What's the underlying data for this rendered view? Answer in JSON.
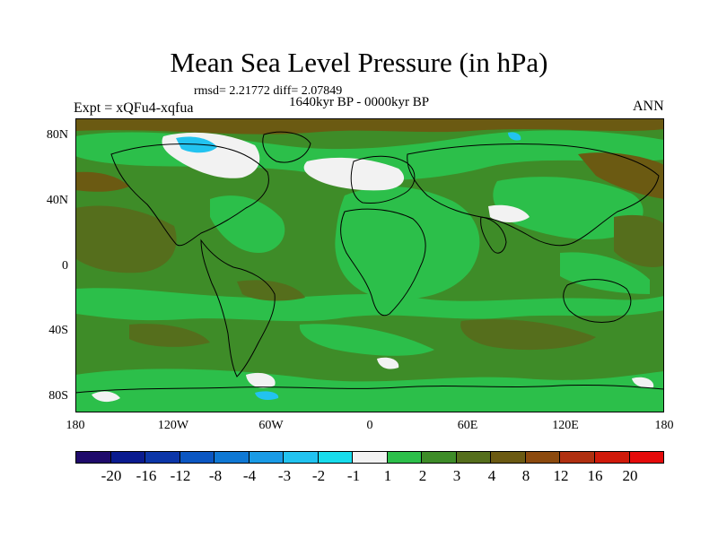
{
  "title": "Mean Sea Level Pressure (in hPa)",
  "stats": "rmsd= 2.21772  diff= 2.07849",
  "period": "1640kyr BP - 0000kyr BP",
  "experiment": "Expt = xQFu4-xqfua",
  "season": "ANN",
  "y_ticks": [
    "80N",
    "40N",
    "0",
    "40S",
    "80S"
  ],
  "x_ticks": [
    "180",
    "120W",
    "60W",
    "0",
    "60E",
    "120E",
    "180"
  ],
  "colorbar": {
    "labels": [
      "-20",
      "-16",
      "-12",
      "-8",
      "-4",
      "-3",
      "-2",
      "-1",
      "1",
      "2",
      "3",
      "4",
      "8",
      "12",
      "16",
      "20"
    ],
    "colors": [
      "#1f0a6b",
      "#0a1b8f",
      "#0c36a8",
      "#0b57c2",
      "#0f78d4",
      "#1a9be6",
      "#22c3f0",
      "#18dcec",
      "#f2f2f2",
      "#2cbf4a",
      "#3e8c28",
      "#556e1c",
      "#6b5a12",
      "#8c4a0e",
      "#b03010",
      "#d01a0a",
      "#e50a0a"
    ]
  },
  "map_colors": {
    "ocean_base": "#3e8c28",
    "light_green": "#2cbf4a",
    "olive": "#556e1c",
    "brown": "#6b5a12",
    "white": "#f2f2f2",
    "cyan": "#22c3f0",
    "coast": "#000000"
  }
}
